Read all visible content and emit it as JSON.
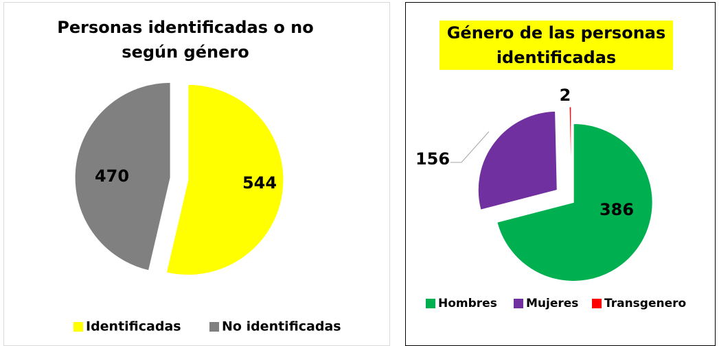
{
  "chart_data": [
    {
      "type": "pie",
      "title": "Personas identificadas o no según género",
      "categories": [
        "Identificadas",
        "No identificadas"
      ],
      "values": [
        544,
        470
      ],
      "colors": [
        "#ffff00",
        "#808080"
      ],
      "legend": "bottom"
    },
    {
      "type": "pie",
      "title": "Género de las personas identificadas",
      "categories": [
        "Hombres",
        "Mujeres",
        "Transgenero"
      ],
      "values": [
        386,
        156,
        2
      ],
      "colors": [
        "#00b050",
        "#7030a0",
        "#ff0000"
      ],
      "legend": "bottom",
      "title_background": "#ffff00"
    }
  ]
}
